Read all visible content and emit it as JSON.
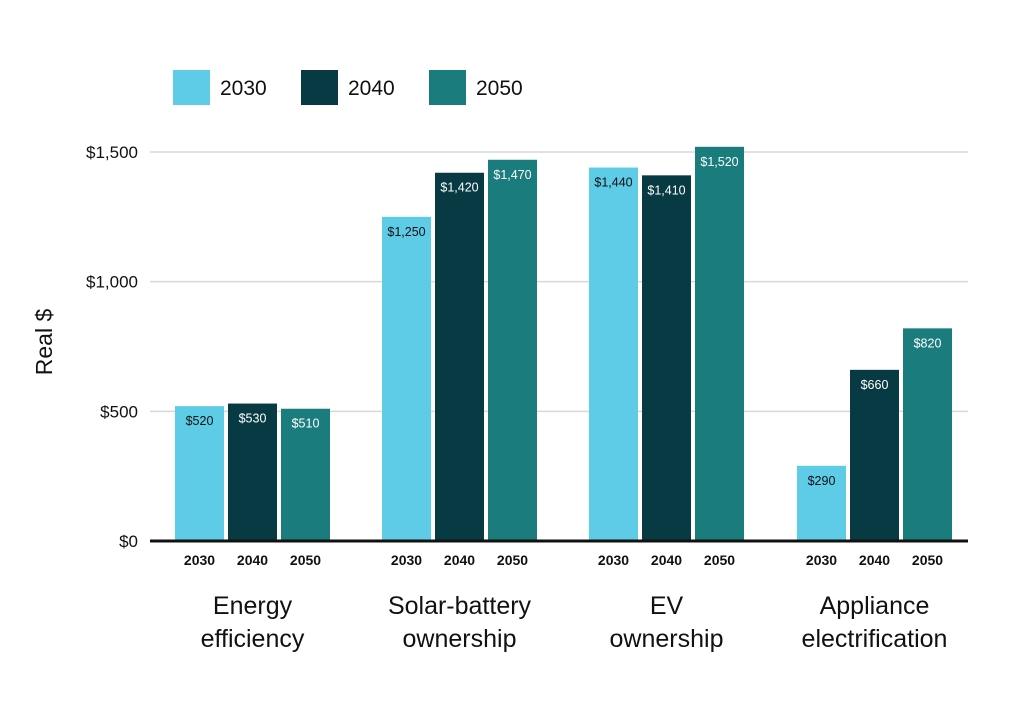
{
  "colors": {
    "2030": "#5ecbe7",
    "2040": "#083a43",
    "2050": "#1a7c7c",
    "grid": "#d9d9d9",
    "axis": "#111111",
    "label_dark": "#111111",
    "label_light": "#ffffff"
  },
  "chart_data": {
    "type": "bar",
    "ylabel": "Real $",
    "ylim": [
      0,
      1500
    ],
    "yticks": [
      0,
      500,
      1000,
      1500
    ],
    "ytick_labels": [
      "$0",
      "$500",
      "$1,000",
      "$1,500"
    ],
    "grid": true,
    "legend_position": "top-left",
    "categories": [
      {
        "key": "energy",
        "lines": [
          "Energy",
          "efficiency"
        ]
      },
      {
        "key": "solar",
        "lines": [
          "Solar-battery",
          "ownership"
        ]
      },
      {
        "key": "ev",
        "lines": [
          "EV",
          "ownership"
        ]
      },
      {
        "key": "appliance",
        "lines": [
          "Appliance",
          "electrification"
        ]
      }
    ],
    "series": [
      {
        "name": "2030",
        "values": [
          520,
          1250,
          1440,
          290
        ],
        "labels": [
          "$520",
          "$1,250",
          "$1,440",
          "$290"
        ]
      },
      {
        "name": "2040",
        "values": [
          530,
          1420,
          1410,
          660
        ],
        "labels": [
          "$530",
          "$1,420",
          "$1,410",
          "$660"
        ]
      },
      {
        "name": "2050",
        "values": [
          510,
          1470,
          1520,
          820
        ],
        "labels": [
          "$510",
          "$1,470",
          "$1,520",
          "$820"
        ]
      }
    ]
  }
}
